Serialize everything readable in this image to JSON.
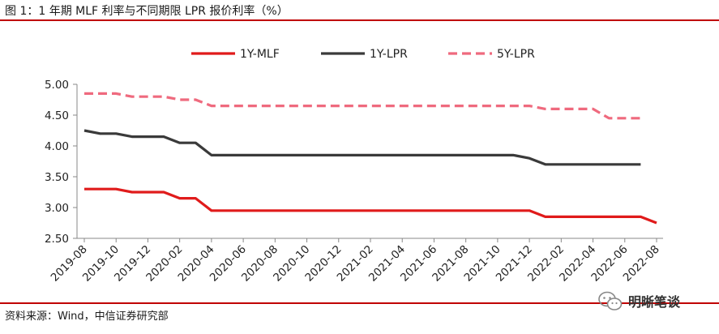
{
  "header": {
    "title": "图 1：1 年期 MLF 利率与不同期限 LPR 报价利率（%）"
  },
  "footer": {
    "source": "资料来源：Wind，中信证券研究部"
  },
  "watermark": {
    "text": "明晰笔谈",
    "icon": "wechat-icon"
  },
  "colors": {
    "mlf": "#e01b1b",
    "lpr1y": "#3a3a3a",
    "lpr5y": "#ef6a7e",
    "rule": "#c00000"
  },
  "chart_data": {
    "type": "line",
    "title": "",
    "xlabel": "",
    "ylabel": "",
    "ylim": [
      2.5,
      5.0
    ],
    "yticks": [
      "5.00",
      "4.50",
      "4.00",
      "3.50",
      "3.00",
      "2.50"
    ],
    "legend_position": "top-center",
    "grid": false,
    "x": [
      "2019-08",
      "2019-09",
      "2019-10",
      "2019-11",
      "2019-12",
      "2020-01",
      "2020-02",
      "2020-03",
      "2020-04",
      "2020-05",
      "2020-06",
      "2020-07",
      "2020-08",
      "2020-09",
      "2020-10",
      "2020-11",
      "2020-12",
      "2021-01",
      "2021-02",
      "2021-03",
      "2021-04",
      "2021-05",
      "2021-06",
      "2021-07",
      "2021-08",
      "2021-09",
      "2021-10",
      "2021-11",
      "2021-12",
      "2022-01",
      "2022-02",
      "2022-03",
      "2022-04",
      "2022-05",
      "2022-06",
      "2022-07",
      "2022-08"
    ],
    "xtick_labels": [
      "2019-08",
      "2019-10",
      "2019-12",
      "2020-02",
      "2020-04",
      "2020-06",
      "2020-08",
      "2020-10",
      "2020-12",
      "2021-02",
      "2021-04",
      "2021-06",
      "2021-08",
      "2021-10",
      "2021-12",
      "2022-02",
      "2022-04",
      "2022-06",
      "2022-08"
    ],
    "series": [
      {
        "name": "1Y-MLF",
        "style": "solid",
        "values": [
          3.3,
          3.3,
          3.3,
          3.25,
          3.25,
          3.25,
          3.15,
          3.15,
          2.95,
          2.95,
          2.95,
          2.95,
          2.95,
          2.95,
          2.95,
          2.95,
          2.95,
          2.95,
          2.95,
          2.95,
          2.95,
          2.95,
          2.95,
          2.95,
          2.95,
          2.95,
          2.95,
          2.95,
          2.95,
          2.85,
          2.85,
          2.85,
          2.85,
          2.85,
          2.85,
          2.85,
          2.75
        ]
      },
      {
        "name": "1Y-LPR",
        "style": "solid",
        "values": [
          4.25,
          4.2,
          4.2,
          4.15,
          4.15,
          4.15,
          4.05,
          4.05,
          3.85,
          3.85,
          3.85,
          3.85,
          3.85,
          3.85,
          3.85,
          3.85,
          3.85,
          3.85,
          3.85,
          3.85,
          3.85,
          3.85,
          3.85,
          3.85,
          3.85,
          3.85,
          3.85,
          3.85,
          3.8,
          3.7,
          3.7,
          3.7,
          3.7,
          3.7,
          3.7,
          3.7,
          null
        ]
      },
      {
        "name": "5Y-LPR",
        "style": "dashed",
        "values": [
          4.85,
          4.85,
          4.85,
          4.8,
          4.8,
          4.8,
          4.75,
          4.75,
          4.65,
          4.65,
          4.65,
          4.65,
          4.65,
          4.65,
          4.65,
          4.65,
          4.65,
          4.65,
          4.65,
          4.65,
          4.65,
          4.65,
          4.65,
          4.65,
          4.65,
          4.65,
          4.65,
          4.65,
          4.65,
          4.6,
          4.6,
          4.6,
          4.6,
          4.45,
          4.45,
          4.45,
          null
        ]
      }
    ]
  }
}
